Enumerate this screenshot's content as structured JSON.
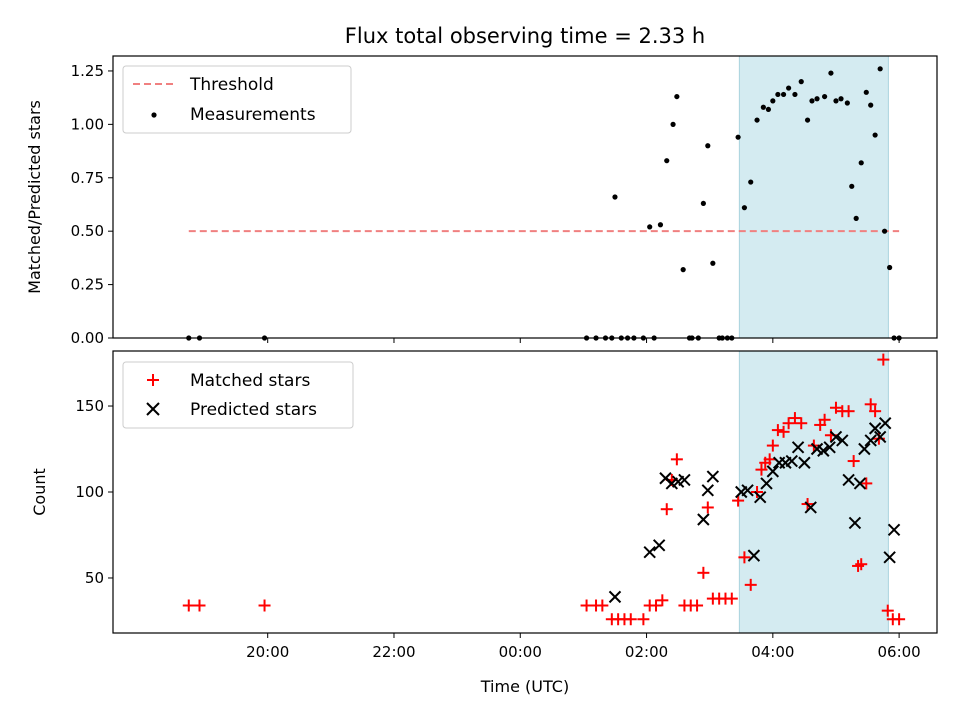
{
  "chart_data": [
    {
      "type": "scatter",
      "title": "Flux total observing time = 2.33 h",
      "xlabel": "",
      "ylabel": "Matched/Predicted stars",
      "ylim": [
        0,
        1.32
      ],
      "yticks": [
        "0.00",
        "0.25",
        "0.50",
        "0.75",
        "1.00",
        "1.25"
      ],
      "ytick_values": [
        0,
        0.25,
        0.5,
        0.75,
        1.0,
        1.25
      ],
      "xlim_hours": [
        17.55,
        30.6
      ],
      "shaded_region_hours": [
        27.47,
        29.83
      ],
      "shaded_color": "#d4ebf1",
      "threshold": {
        "name": "Threshold",
        "value": 0.5,
        "x_range_hours": [
          18.75,
          30.0
        ],
        "color": "#f08080"
      },
      "legend": [
        "Threshold",
        "Measurements"
      ],
      "series": [
        {
          "name": "Measurements",
          "color": "#000000",
          "x_hours": [
            18.75,
            18.92,
            19.95,
            25.05,
            25.2,
            25.35,
            25.45,
            25.5,
            25.6,
            25.7,
            25.8,
            25.95,
            26.05,
            26.12,
            26.22,
            26.32,
            26.42,
            26.48,
            26.58,
            26.68,
            26.72,
            26.82,
            26.9,
            26.97,
            27.05,
            27.15,
            27.2,
            27.28,
            27.35,
            27.45,
            27.55,
            27.65,
            27.75,
            27.85,
            27.93,
            28.0,
            28.08,
            28.17,
            28.25,
            28.35,
            28.45,
            28.55,
            28.62,
            28.7,
            28.82,
            28.92,
            29.0,
            29.08,
            29.18,
            29.25,
            29.32,
            29.4,
            29.48,
            29.55,
            29.62,
            29.7,
            29.77,
            29.85,
            29.92,
            30.0
          ],
          "y": [
            0.0,
            0.0,
            0.0,
            0.0,
            0.0,
            0.0,
            0.0,
            0.66,
            0.0,
            0.0,
            0.0,
            0.0,
            0.52,
            0.0,
            0.53,
            0.83,
            1.0,
            1.13,
            0.32,
            0.0,
            0.0,
            0.0,
            0.63,
            0.9,
            0.35,
            0.0,
            0.0,
            0.0,
            0.0,
            0.94,
            0.61,
            0.73,
            1.02,
            1.08,
            1.07,
            1.11,
            1.14,
            1.14,
            1.17,
            1.14,
            1.2,
            1.02,
            1.11,
            1.12,
            1.13,
            1.24,
            1.11,
            1.12,
            1.1,
            0.71,
            0.56,
            0.82,
            1.15,
            1.09,
            0.95,
            1.26,
            0.5,
            0.33,
            0.0,
            0.0
          ]
        }
      ]
    },
    {
      "type": "scatter",
      "xlabel": "Time (UTC)",
      "ylabel": "Count",
      "ylim": [
        18,
        182
      ],
      "yticks": [
        "50",
        "100",
        "150"
      ],
      "ytick_values": [
        50,
        100,
        150
      ],
      "xticks": [
        "20:00",
        "22:00",
        "00:00",
        "02:00",
        "04:00",
        "06:00"
      ],
      "xtick_hours": [
        20,
        22,
        24,
        26,
        28,
        30
      ],
      "xlim_hours": [
        17.55,
        30.6
      ],
      "shaded_region_hours": [
        27.47,
        29.83
      ],
      "shaded_color": "#d4ebf1",
      "legend": [
        "Matched stars",
        "Predicted stars"
      ],
      "series": [
        {
          "name": "Matched stars",
          "color": "#ff0000",
          "marker": "plus",
          "x_hours": [
            18.75,
            18.92,
            19.95,
            25.05,
            25.2,
            25.3,
            25.45,
            25.55,
            25.65,
            25.75,
            25.95,
            26.05,
            26.15,
            26.25,
            26.32,
            26.4,
            26.48,
            26.6,
            26.7,
            26.8,
            26.9,
            26.97,
            27.05,
            27.15,
            27.25,
            27.35,
            27.45,
            27.55,
            27.65,
            27.75,
            27.82,
            27.88,
            27.95,
            28.0,
            28.08,
            28.17,
            28.25,
            28.35,
            28.45,
            28.55,
            28.65,
            28.75,
            28.82,
            28.92,
            29.0,
            29.1,
            29.2,
            29.28,
            29.35,
            29.4,
            29.48,
            29.55,
            29.62,
            29.68,
            29.75,
            29.82,
            29.9,
            30.0
          ],
          "y": [
            34,
            34,
            34,
            34,
            34,
            34,
            26,
            26,
            26,
            26,
            26,
            34,
            34,
            37,
            90,
            107,
            119,
            34,
            34,
            34,
            53,
            91,
            38,
            38,
            38,
            38,
            95,
            62,
            46,
            100,
            113,
            117,
            119,
            127,
            136,
            135,
            140,
            143,
            140,
            93,
            127,
            139,
            142,
            133,
            149,
            147,
            147,
            118,
            57,
            58,
            105,
            151,
            147,
            131,
            177,
            31,
            26,
            26
          ]
        },
        {
          "name": "Predicted stars",
          "color": "#000000",
          "marker": "x",
          "x_hours": [
            25.5,
            26.05,
            26.2,
            26.3,
            26.4,
            26.5,
            26.6,
            26.9,
            26.97,
            27.05,
            27.5,
            27.6,
            27.7,
            27.8,
            27.9,
            28.0,
            28.1,
            28.2,
            28.3,
            28.4,
            28.5,
            28.6,
            28.7,
            28.8,
            28.9,
            29.0,
            29.1,
            29.2,
            29.3,
            29.38,
            29.45,
            29.55,
            29.62,
            29.7,
            29.78,
            29.85,
            29.92
          ],
          "y": [
            39,
            65,
            69,
            108,
            105,
            106,
            107,
            84,
            101,
            109,
            100,
            101,
            63,
            97,
            105,
            112,
            117,
            117,
            118,
            126,
            117,
            91,
            125,
            124,
            126,
            132,
            130,
            107,
            82,
            105,
            125,
            130,
            137,
            132,
            140,
            62,
            78
          ]
        }
      ]
    }
  ]
}
